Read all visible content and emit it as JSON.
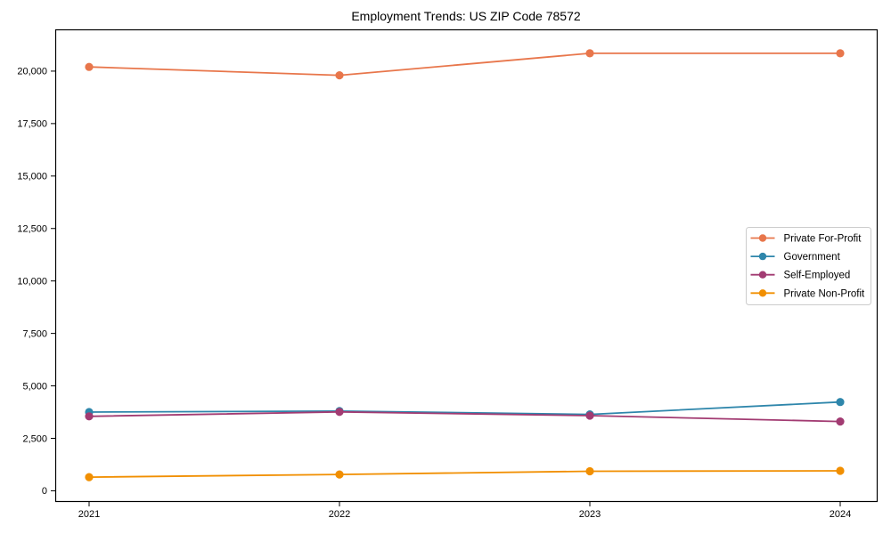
{
  "page": {
    "background": "#ffffff"
  },
  "chart_data": {
    "type": "line",
    "title": "Employment Trends: US ZIP Code 78572",
    "xlabel": "",
    "ylabel": "",
    "categories": [
      "2021",
      "2022",
      "2023",
      "2024"
    ],
    "series": [
      {
        "name": "Private For-Profit",
        "color": "#E8764B",
        "values": [
          20200,
          19800,
          20850,
          20850
        ]
      },
      {
        "name": "Government",
        "color": "#2E86AB",
        "values": [
          3750,
          3800,
          3640,
          4230
        ]
      },
      {
        "name": "Self-Employed",
        "color": "#A23B72",
        "values": [
          3550,
          3760,
          3580,
          3300
        ]
      },
      {
        "name": "Private Non-Profit",
        "color": "#F18F01",
        "values": [
          650,
          780,
          930,
          950
        ]
      }
    ],
    "y_axis": {
      "ticks": [
        0,
        2500,
        5000,
        7500,
        10000,
        12500,
        15000,
        17500,
        20000
      ],
      "tick_labels": [
        "0",
        "2,500",
        "5,000",
        "7,500",
        "10,000",
        "12,500",
        "15,000",
        "17,500",
        "20,000"
      ],
      "range": [
        -490,
        21990
      ]
    },
    "legend": {
      "position": "center-right",
      "labels": [
        "Private For-Profit",
        "Government",
        "Self-Employed",
        "Private Non-Profit"
      ]
    },
    "grid": false,
    "marker": "circle",
    "axis_color": "#000000",
    "text_color": "#000000",
    "legend_border_color": "#cccccc",
    "legend_background": "#ffffff"
  }
}
